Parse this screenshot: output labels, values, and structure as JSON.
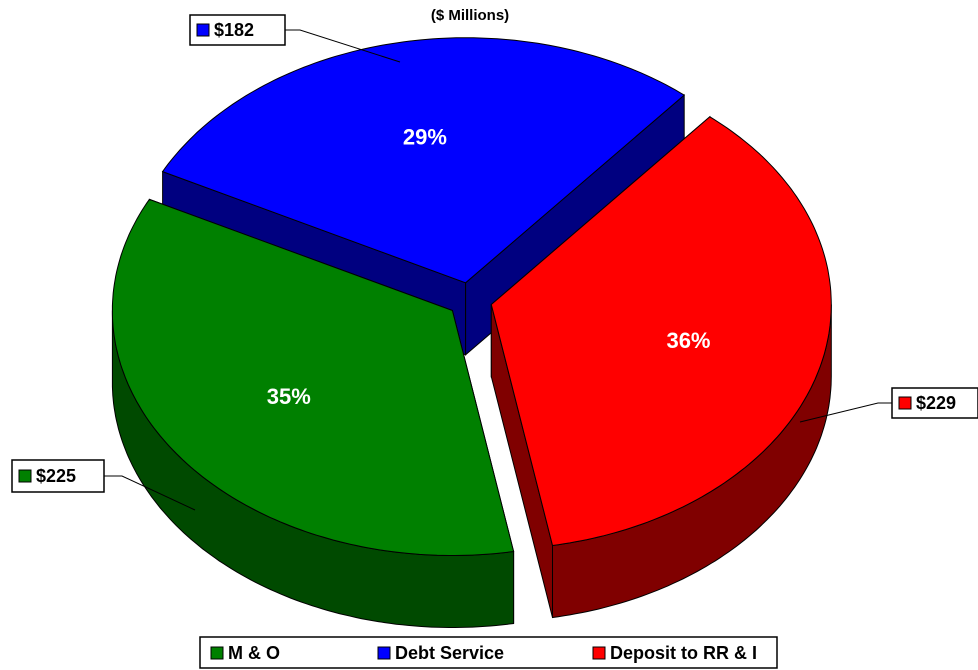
{
  "chart_data": {
    "type": "pie3d",
    "subtitle": "($ Millions)",
    "categories": [
      "M & O",
      "Debt Service",
      "Deposit to RR & I"
    ],
    "values": [
      225,
      182,
      229
    ],
    "value_labels": [
      "$225",
      "$182",
      "$229"
    ],
    "percents": [
      35,
      29,
      36
    ],
    "percent_labels": [
      "35%",
      "29%",
      "36%"
    ],
    "colors": [
      "#008000",
      "#0000ff",
      "#ff0000"
    ],
    "side_colors": [
      "#004a00",
      "#000080",
      "#800000"
    ],
    "legend": "bottom"
  }
}
